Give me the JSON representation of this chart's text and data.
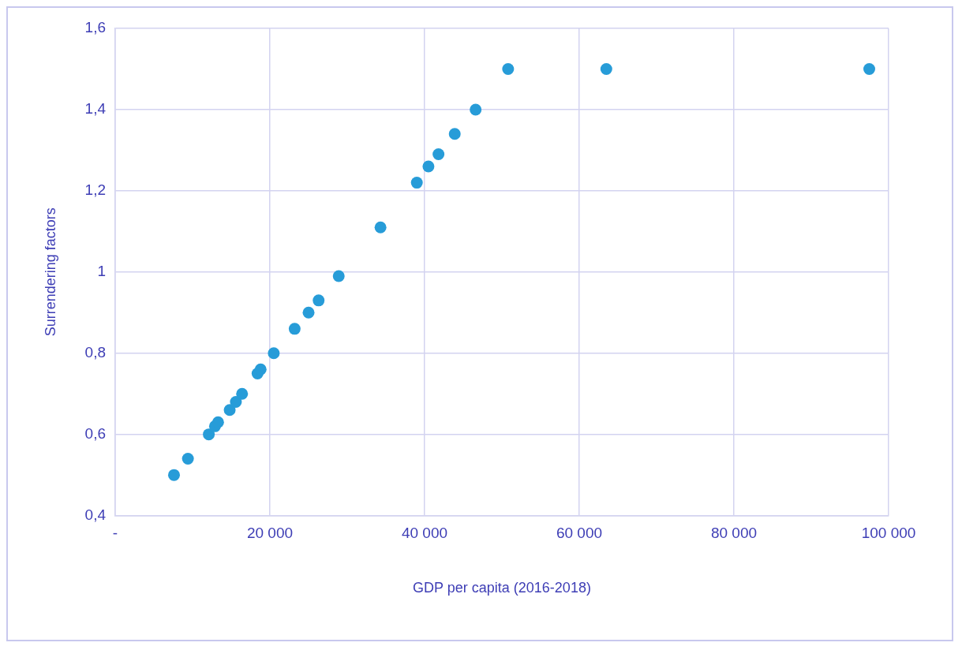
{
  "chart_data": {
    "type": "scatter",
    "xlabel": "GDP per capita (2016-2018)",
    "ylabel": "Surrendering factors",
    "x": [
      7600,
      9400,
      12100,
      12900,
      13300,
      14800,
      15600,
      16400,
      18400,
      18800,
      20500,
      23200,
      25000,
      26300,
      28900,
      34300,
      39000,
      40500,
      41800,
      43900,
      46600,
      50800,
      63500,
      97500
    ],
    "series": [
      {
        "color": "#279cd8",
        "values": [
          0.5,
          0.54,
          0.6,
          0.62,
          0.63,
          0.66,
          0.68,
          0.7,
          0.75,
          0.76,
          0.8,
          0.86,
          0.9,
          0.93,
          0.99,
          1.11,
          1.22,
          1.26,
          1.29,
          1.34,
          1.4,
          1.5,
          1.5,
          1.5
        ]
      }
    ],
    "xlim": [
      0,
      100000
    ],
    "xticks": [
      {
        "value": 0,
        "label": "-"
      },
      {
        "value": 20000,
        "label": "20 000"
      },
      {
        "value": 40000,
        "label": "40 000"
      },
      {
        "value": 60000,
        "label": "60 000"
      },
      {
        "value": 80000,
        "label": "80 000"
      },
      {
        "value": 100000,
        "label": "100 000"
      }
    ],
    "ylim": [
      0.4,
      1.6
    ],
    "yticks": [
      {
        "value": 0.4,
        "label": "0,4"
      },
      {
        "value": 0.6,
        "label": "0,6"
      },
      {
        "value": 0.8,
        "label": "0,8"
      },
      1,
      {
        "value": 1.2,
        "label": "1,2"
      },
      {
        "value": 1.4,
        "label": "1,4"
      },
      {
        "value": 1.6,
        "label": "1,6"
      }
    ],
    "grid": true,
    "legend": false,
    "marker": "circle"
  }
}
